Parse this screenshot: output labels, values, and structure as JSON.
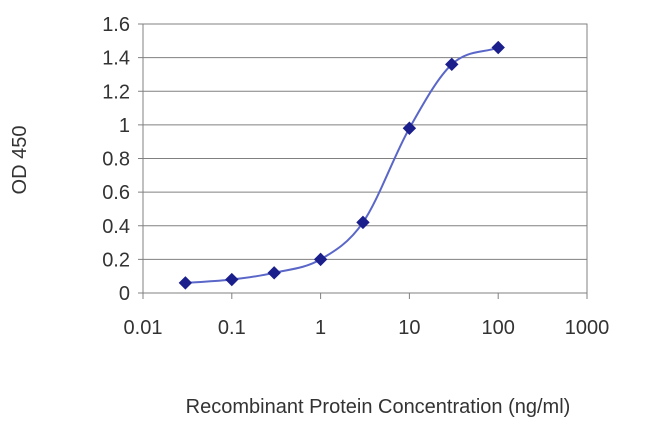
{
  "chart_data": {
    "type": "scatter",
    "title": "",
    "xlabel": "Recombinant Protein Concentration (ng/ml)",
    "ylabel": "OD 450",
    "xscale": "log",
    "xlim": [
      0.01,
      1000
    ],
    "ylim": [
      0,
      1.6
    ],
    "xticks": [
      "0.01",
      "0.1",
      "1",
      "10",
      "100",
      "1000"
    ],
    "yticks": [
      "0",
      "0.2",
      "0.4",
      "0.6",
      "0.8",
      "1",
      "1.2",
      "1.4",
      "1.6"
    ],
    "grid": "horizontal",
    "line": "smooth fitted curve through points",
    "series": [
      {
        "x": [
          0.03,
          0.1,
          0.3,
          1,
          3,
          10,
          30,
          100
        ],
        "y": [
          0.06,
          0.08,
          0.12,
          0.2,
          0.42,
          0.98,
          1.36,
          1.46
        ]
      }
    ],
    "colors": {
      "line": "#5a67c8",
      "marker": "#1b1f8c",
      "grid": "#808080",
      "frame": "#808080"
    }
  }
}
